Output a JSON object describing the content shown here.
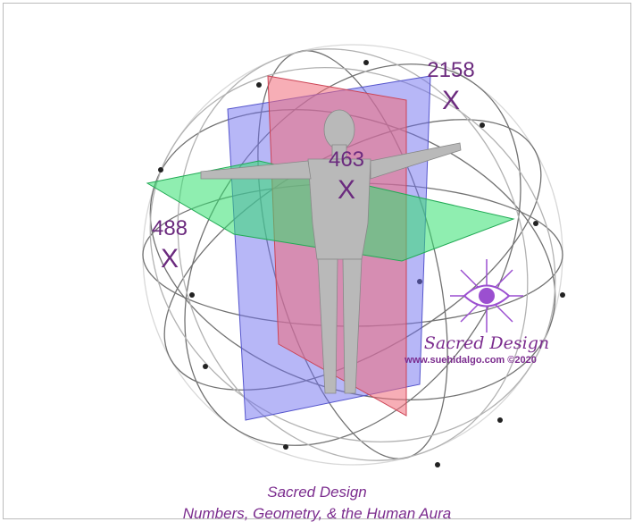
{
  "illustration": {
    "markers": [
      {
        "number": "2158",
        "symbol": "X"
      },
      {
        "number": "463",
        "symbol": "X"
      },
      {
        "number": "488",
        "symbol": "X"
      }
    ]
  },
  "logo": {
    "name": "Sacred Design",
    "url": "www.suehidalgo.com ©2020"
  },
  "caption": {
    "title": "Sacred Design",
    "subtitle": "Numbers, Geometry, & the Human Aura"
  }
}
